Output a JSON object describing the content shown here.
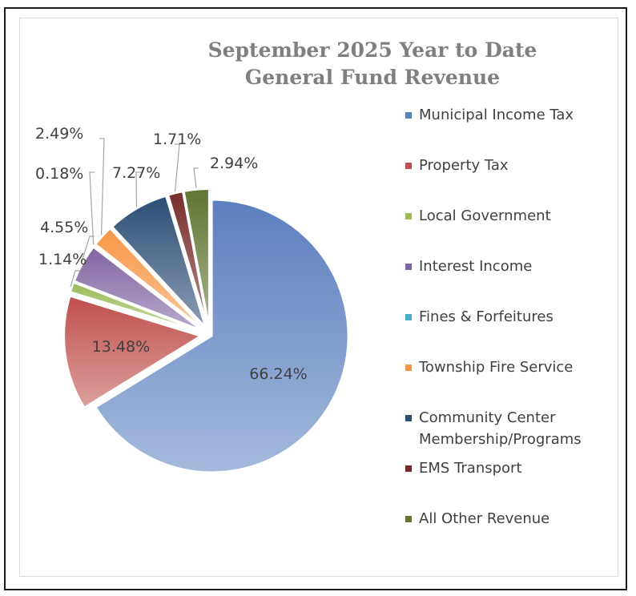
{
  "title_lines": [
    "September 2025 Year to Date",
    "General Fund Revenue"
  ],
  "chart_data": {
    "type": "pie",
    "title": "September 2025 Year to Date General Fund Revenue",
    "legend_position": "right",
    "categories": [
      "Municipal Income Tax",
      "Property Tax",
      "Local Government",
      "Interest Income",
      "Fines & Forfeitures",
      "Township Fire Service",
      "Community Center Membership/Programs",
      "EMS Transport",
      "All Other Revenue"
    ],
    "values": [
      66.24,
      13.48,
      1.14,
      4.55,
      0.18,
      2.49,
      7.27,
      1.71,
      2.94
    ],
    "labels": [
      "66.24%",
      "13.48%",
      "1.14%",
      "4.55%",
      "0.18%",
      "2.49%",
      "7.27%",
      "1.71%",
      "2.94%"
    ],
    "colors": [
      "#5b7fbf",
      "#bf504d",
      "#9bbb59",
      "#8064a2",
      "#4bacc6",
      "#f79646",
      "#2c4d75",
      "#772c2a",
      "#5f7530"
    ]
  },
  "legend": [
    [
      "Municipal Income Tax"
    ],
    [
      "Property Tax"
    ],
    [
      "Local Government"
    ],
    [
      "Interest Income"
    ],
    [
      "Fines & Forfeitures"
    ],
    [
      "Township Fire Service"
    ],
    [
      "Community Center",
      "Membership/Programs"
    ],
    [
      "EMS Transport"
    ],
    [
      "All Other Revenue"
    ]
  ]
}
